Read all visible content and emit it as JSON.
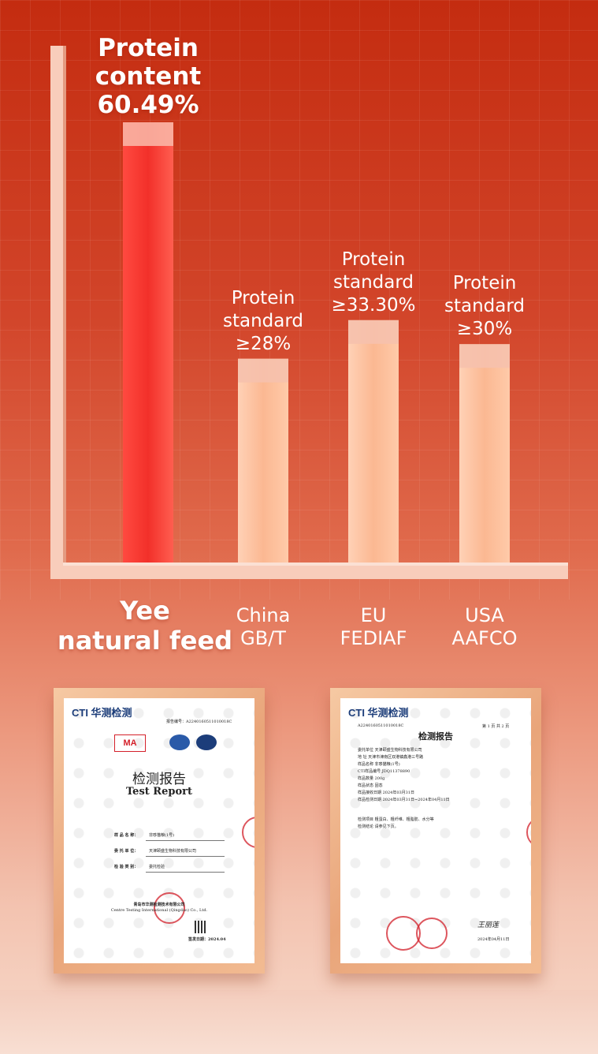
{
  "chart_data": {
    "type": "bar",
    "categories": [
      "Yee natural feed",
      "China GB/T",
      "EU FEDIAF",
      "USA AAFCO"
    ],
    "values": [
      60.49,
      28,
      33.3,
      30
    ],
    "bar_labels": [
      [
        "Protein",
        "content",
        "60.49%"
      ],
      [
        "Protein",
        "standard",
        "≥28%"
      ],
      [
        "Protein",
        "standard",
        "≥33.30%"
      ],
      [
        "Protein",
        "standard",
        "≥30%"
      ]
    ],
    "category_lines": [
      [
        "Yee",
        "natural feed"
      ],
      [
        "China",
        "GB/T"
      ],
      [
        "EU",
        "FEDIAF"
      ],
      [
        "USA",
        "AAFCO"
      ]
    ],
    "colors": {
      "highlight": "#f2302a",
      "standard": "#fbb892"
    },
    "ylim": [
      0,
      60.49
    ],
    "grid": true
  },
  "certificates": [
    {
      "logo": "CTI 华测检测",
      "report_no": "报告编号：A2240160511010018C",
      "title_cn": "检测报告",
      "title_en": "Test Report",
      "field1_label": "样 品 名 称：",
      "field1_value": "非哆猫粮(1号)",
      "field2_label": "委 托 单 位：",
      "field2_value": "天津颐盛生物科技有限公司",
      "field3_label": "检 验 类 别：",
      "field3_value": "委托检验",
      "org": "青岛市华测检测技术有限公司",
      "org_en": "Centre Testing International (Qingdao) Co., Ltd.",
      "date": "签发日期：2024.04"
    },
    {
      "logo": "CTI 华测检测",
      "report_no": "A2240160511010018C",
      "page": "第 1 页 共 2 页",
      "title_cn": "检测报告",
      "rows": [
        "委托单位  天津颐盛生物科技有限公司",
        "地    址  天津市津南区双港镇鑫港三号路",
        "样品名称  非哆猫粮(1号)",
        "CTI样品编号  JDQ11378890",
        "样品数量  200g",
        "样品状态  固态",
        "样品接收日期  2024年03月31日",
        "样品检测日期  2024年03月31日~2024年04月11日",
        "检测项目  粗蛋白、粗纤维、粗脂肪、水分等",
        "检测结论  请参见下页。"
      ],
      "signature": "王丽莲",
      "date": "2024年04月11日"
    }
  ]
}
